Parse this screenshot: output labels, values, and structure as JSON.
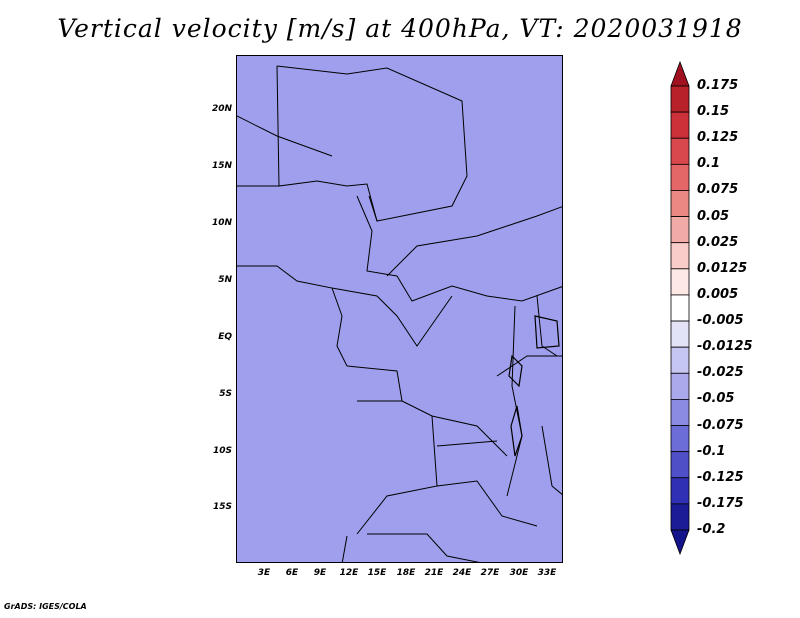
{
  "title": "Vertical velocity [m/s] at 400hPa, VT: 2020031918",
  "credit": "GrADS: IGES/COLA",
  "map": {
    "variable": "Vertical velocity",
    "units": "m/s",
    "level": "400hPa",
    "valid_time": "2020031918",
    "lat_ticks": [
      "20N",
      "15N",
      "10N",
      "5N",
      "EQ",
      "5S",
      "10S",
      "15S"
    ],
    "lon_ticks": [
      "3E",
      "6E",
      "9E",
      "12E",
      "15E",
      "18E",
      "21E",
      "24E",
      "27E",
      "30E",
      "33E"
    ]
  },
  "colorbar": {
    "labels": [
      "0.175",
      "0.15",
      "0.125",
      "0.1",
      "0.075",
      "0.05",
      "0.025",
      "0.0125",
      "0.005",
      "-0.005",
      "-0.0125",
      "-0.025",
      "-0.05",
      "-0.075",
      "-0.1",
      "-0.125",
      "-0.175",
      "-0.2"
    ],
    "colors": [
      "#a01020",
      "#b8202a",
      "#cc3038",
      "#d9484c",
      "#e26766",
      "#ea8884",
      "#f2aaa6",
      "#f8ccc8",
      "#fde8e6",
      "#ffffff",
      "#e3e3f7",
      "#c6c6f2",
      "#a9a9ec",
      "#8b8be3",
      "#6d6dd8",
      "#4f4fc8",
      "#3030b4",
      "#1c1c96",
      "#14148a"
    ]
  }
}
